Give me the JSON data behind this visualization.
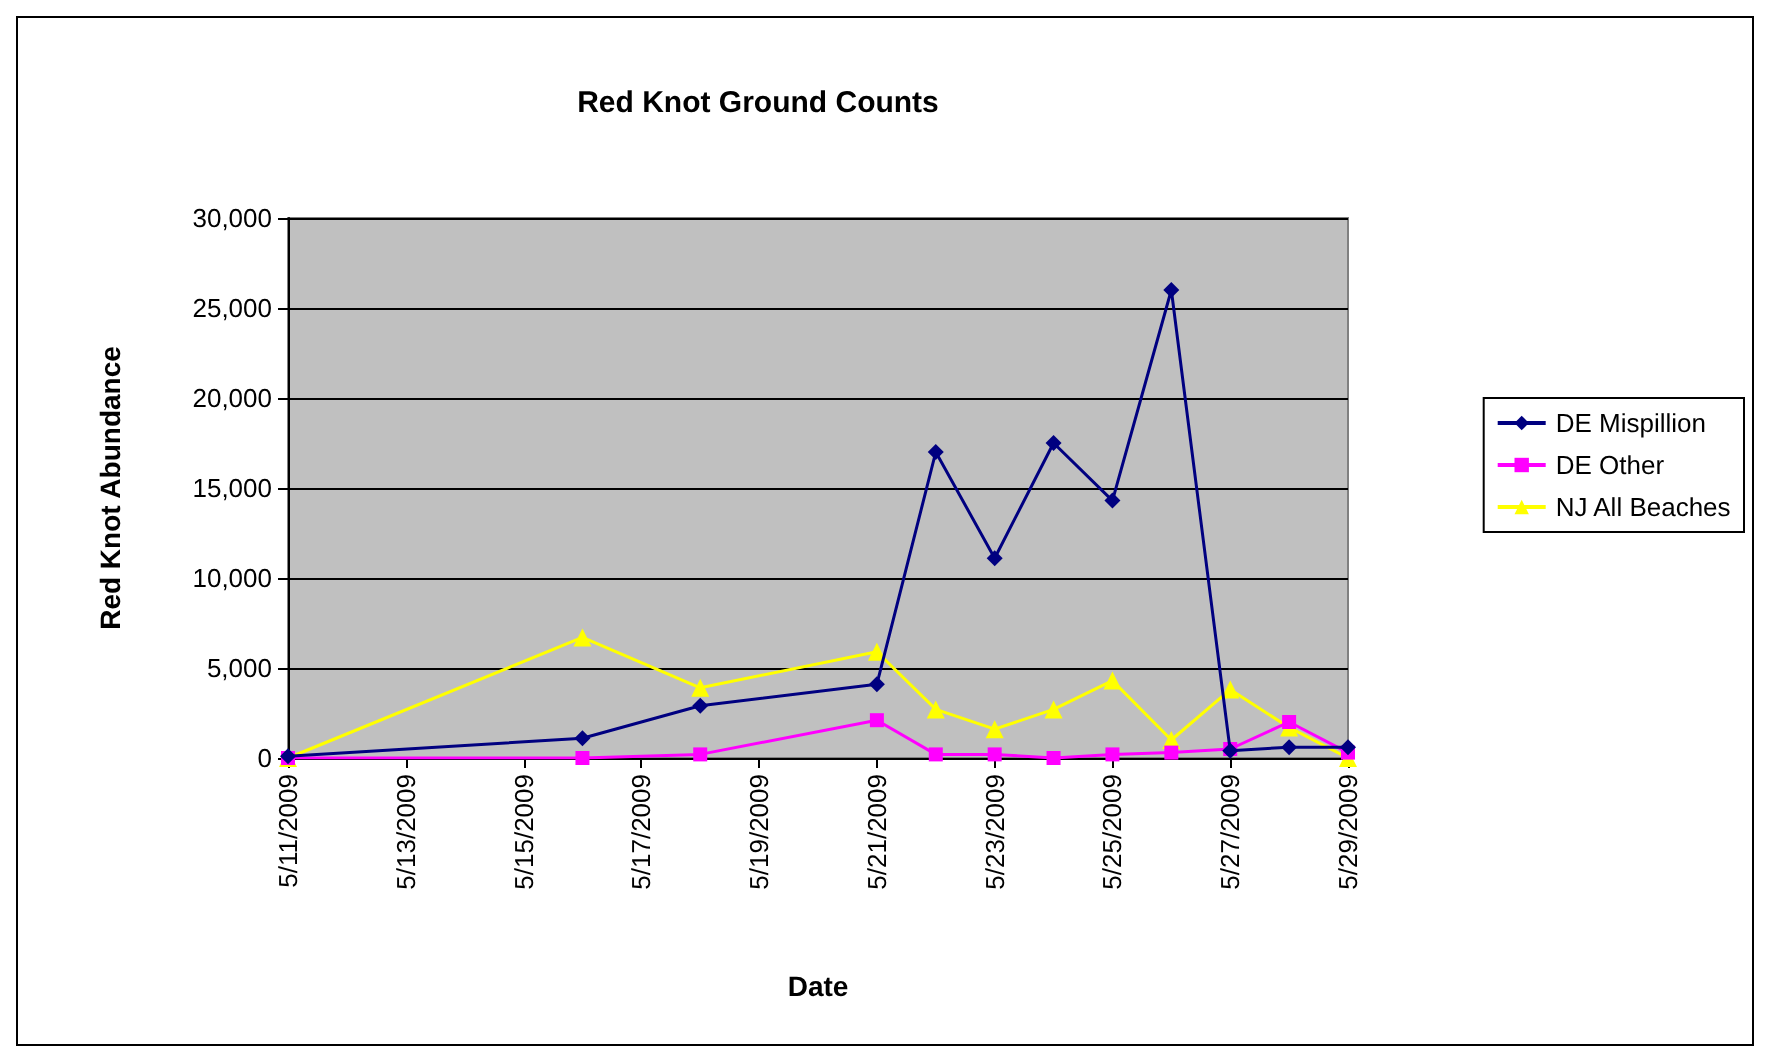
{
  "chart_data": {
    "type": "line",
    "title": "Red Knot Ground Counts",
    "xlabel": "Date",
    "ylabel": "Red Knot Abundance",
    "x": [
      "2009-05-11",
      "2009-05-16",
      "2009-05-18",
      "2009-05-21",
      "2009-05-22",
      "2009-05-23",
      "2009-05-24",
      "2009-05-25",
      "2009-05-26",
      "2009-05-27",
      "2009-05-28",
      "2009-05-29"
    ],
    "series": [
      {
        "name": "DE Mispillion",
        "color": "#000080",
        "marker": "diamond",
        "values": [
          100,
          1100,
          2900,
          4100,
          17000,
          11100,
          17500,
          14300,
          26000,
          400,
          600,
          600
        ]
      },
      {
        "name": "DE Other",
        "color": "#ff00ff",
        "marker": "square",
        "values": [
          0,
          0,
          200,
          2100,
          200,
          200,
          0,
          200,
          300,
          500,
          2000,
          300
        ]
      },
      {
        "name": "NJ All Beaches",
        "color": "#ffff00",
        "marker": "triangle",
        "values": [
          0,
          6700,
          3900,
          5900,
          2700,
          1600,
          2700,
          4300,
          1000,
          3800,
          1700,
          0
        ]
      }
    ],
    "xlim": [
      "2009-05-11",
      "2009-05-29"
    ],
    "xticks": [
      {
        "value": "2009-05-11",
        "label": "5/11/2009"
      },
      {
        "value": "2009-05-13",
        "label": "5/13/2009"
      },
      {
        "value": "2009-05-15",
        "label": "5/15/2009"
      },
      {
        "value": "2009-05-17",
        "label": "5/17/2009"
      },
      {
        "value": "2009-05-19",
        "label": "5/19/2009"
      },
      {
        "value": "2009-05-21",
        "label": "5/21/2009"
      },
      {
        "value": "2009-05-23",
        "label": "5/23/2009"
      },
      {
        "value": "2009-05-25",
        "label": "5/25/2009"
      },
      {
        "value": "2009-05-27",
        "label": "5/27/2009"
      },
      {
        "value": "2009-05-29",
        "label": "5/29/2009"
      }
    ],
    "ylim": [
      0,
      30000
    ],
    "yticks": [
      {
        "value": 0,
        "label": "0"
      },
      {
        "value": 5000,
        "label": "5,000"
      },
      {
        "value": 10000,
        "label": "10,000"
      },
      {
        "value": 15000,
        "label": "15,000"
      },
      {
        "value": 20000,
        "label": "20,000"
      },
      {
        "value": 25000,
        "label": "25,000"
      },
      {
        "value": 30000,
        "label": "30,000"
      }
    ],
    "grid": "y",
    "legend": "right",
    "line_style": "solid"
  }
}
